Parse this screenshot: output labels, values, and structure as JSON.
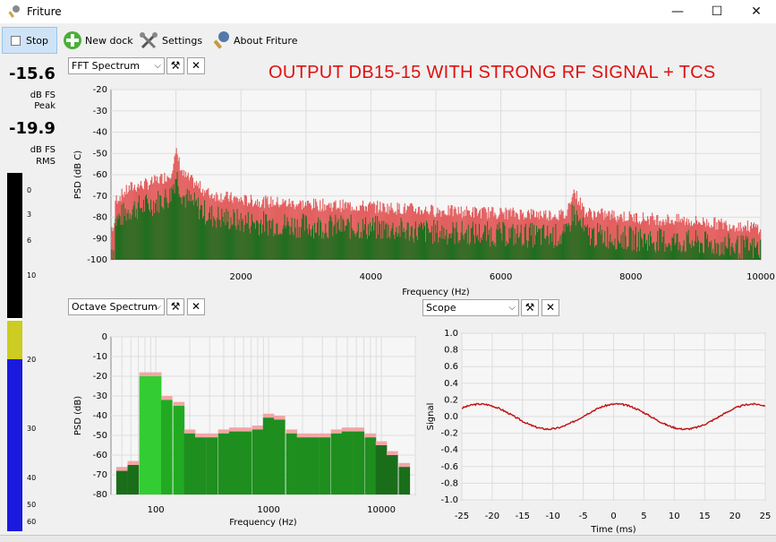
{
  "window": {
    "title": "Friture"
  },
  "toolbar": {
    "stop": "Stop",
    "new_dock": "New dock",
    "settings": "Settings",
    "about": "About Friture"
  },
  "levels": {
    "peak_value": "-15.6",
    "peak_unit": "dB FS",
    "peak_label": "Peak",
    "rms_value": "-19.9",
    "rms_unit": "dB FS",
    "rms_label": "RMS",
    "meter_ticks": [
      "0",
      "3",
      "6",
      "10",
      "20",
      "30",
      "40",
      "50",
      "60"
    ]
  },
  "headline": "OUTPUT DB15-15 WITH STRONG RF SIGNAL + TCS",
  "docks": {
    "fft": "FFT Spectrum",
    "octave": "Octave Spectrum",
    "scope": "Scope"
  },
  "colors": {
    "headline": "#e01010",
    "bar_green": "#1a8a1a",
    "bar_red": "#e36060",
    "scope_line": "#c01010"
  },
  "chart_data": [
    {
      "type": "bar",
      "name": "fft",
      "xlabel": "Frequency (Hz)",
      "ylabel": "PSD (dB C)",
      "xlim": [
        0,
        10000
      ],
      "ylim": [
        -100,
        -20
      ],
      "xticks": [
        "2000",
        "4000",
        "6000",
        "8000",
        "10000"
      ],
      "yticks": [
        "-20",
        "-30",
        "-40",
        "-50",
        "-60",
        "-70",
        "-80",
        "-90",
        "-100"
      ],
      "grid": true,
      "series_note": "dense spectrum; peak near 1000 Hz at about -55 dB, level about -75 dB at low freq falling to about -90 dB at 10000 Hz, spur near 7100 Hz about -72 dB",
      "x": [
        50,
        300,
        600,
        900,
        1000,
        1100,
        1500,
        2000,
        3000,
        4000,
        5000,
        6000,
        7000,
        7100,
        7300,
        8000,
        9000,
        10000
      ],
      "values": [
        -78,
        -72,
        -70,
        -66,
        -56,
        -66,
        -75,
        -78,
        -80,
        -81,
        -83,
        -84,
        -85,
        -73,
        -84,
        -86,
        -88,
        -91
      ]
    },
    {
      "type": "bar",
      "name": "octave",
      "xlabel": "Frequency (Hz)",
      "ylabel": "PSD (dB)",
      "xscale": "log",
      "ylim": [
        -80,
        0
      ],
      "xticks": [
        "100",
        "1000",
        "10000"
      ],
      "yticks": [
        "0",
        "-10",
        "-20",
        "-30",
        "-40",
        "-50",
        "-60",
        "-70",
        "-80"
      ],
      "grid": true,
      "categories": [
        50,
        63,
        80,
        100,
        125,
        160,
        200,
        250,
        315,
        400,
        500,
        630,
        800,
        1000,
        1250,
        1600,
        2000,
        2500,
        3150,
        4000,
        5000,
        6300,
        8000,
        10000,
        12500,
        16000
      ],
      "values": [
        -68,
        -65,
        -20,
        -20,
        -32,
        -35,
        -49,
        -51,
        -51,
        -49,
        -48,
        -48,
        -47,
        -41,
        -42,
        -49,
        -51,
        -51,
        -51,
        -49,
        -48,
        -48,
        -51,
        -55,
        -60,
        -66
      ]
    },
    {
      "type": "line",
      "name": "scope",
      "xlabel": "Time (ms)",
      "ylabel": "Signal",
      "xlim": [
        -25,
        25
      ],
      "ylim": [
        -1.0,
        1.0
      ],
      "xticks": [
        "-25",
        "-20",
        "-15",
        "-10",
        "-5",
        "0",
        "5",
        "10",
        "15",
        "20",
        "25"
      ],
      "yticks": [
        "1.0",
        "0.8",
        "0.6",
        "0.4",
        "0.2",
        "0.0",
        "-0.2",
        "-0.4",
        "-0.6",
        "-0.8",
        "-1.0"
      ],
      "grid": true,
      "waveform": {
        "amplitude": 0.15,
        "period_ms": 22.5,
        "phase_ms": -27.6
      }
    }
  ]
}
